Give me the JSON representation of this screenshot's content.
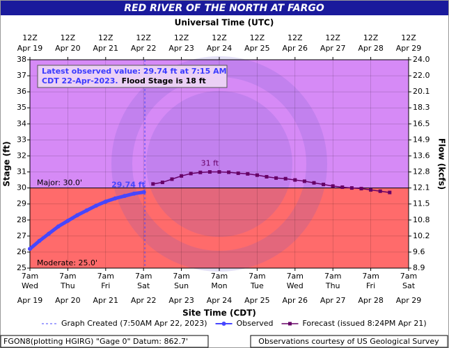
{
  "chart_data": {
    "type": "line",
    "title": "RED RIVER OF THE NORTH AT FARGO",
    "top_axis_title": "Universal Time (UTC)",
    "x_axis_title": "Site Time (CDT)",
    "y_axis_title": "Stage (ft)",
    "y2_axis_title": "Flow (kcfs)",
    "xlim": [
      "2023-04-19 07:00",
      "2023-04-29 07:00"
    ],
    "xticks": [
      "2023-04-19 07:00",
      "2023-04-20 07:00",
      "2023-04-21 07:00",
      "2023-04-22 07:00",
      "2023-04-23 07:00",
      "2023-04-24 07:00",
      "2023-04-25 07:00",
      "2023-04-26 07:00",
      "2023-04-27 07:00",
      "2023-04-28 07:00",
      "2023-04-29 07:00"
    ],
    "xtick_hours": [
      "7am",
      "7am",
      "7am",
      "7am",
      "7am",
      "7am",
      "7am",
      "7am",
      "7am",
      "7am",
      "7am"
    ],
    "xtick_weekdays": [
      "Wed",
      "Thu",
      "Fri",
      "Sat",
      "Sun",
      "Mon",
      "Tue",
      "Wed",
      "Thu",
      "Fri",
      "Sat"
    ],
    "xtick_dates": [
      "Apr 19",
      "Apr 20",
      "Apr 21",
      "Apr 22",
      "Apr 23",
      "Apr 24",
      "Apr 25",
      "Apr 26",
      "Apr 27",
      "Apr 28",
      "Apr 29"
    ],
    "top_xtick_hours": [
      "12Z",
      "12Z",
      "12Z",
      "12Z",
      "12Z",
      "12Z",
      "12Z",
      "12Z",
      "12Z",
      "12Z",
      "12Z"
    ],
    "top_xtick_dates": [
      "Apr 19",
      "Apr 20",
      "Apr 21",
      "Apr 22",
      "Apr 23",
      "Apr 24",
      "Apr 25",
      "Apr 26",
      "Apr 27",
      "Apr 28",
      "Apr 29"
    ],
    "ylim": [
      25,
      38
    ],
    "yticks": [
      25,
      26,
      27,
      28,
      29,
      30,
      31,
      32,
      33,
      34,
      35,
      36,
      37,
      38
    ],
    "y2ticks": [
      8.9,
      9.6,
      10.2,
      10.8,
      11.5,
      12.1,
      12.8,
      13.6,
      14.9,
      16.5,
      18.3,
      20.1,
      {
        "value": 22,
        "label": "22.0"
      },
      {
        "value": 24,
        "label": "24.0"
      }
    ],
    "grid": true,
    "flood_categories": [
      {
        "label": "Moderate: 25.0'",
        "stage": 25,
        "color": "#ff6b6b"
      },
      {
        "label": "Major: 30.0'",
        "stage": 30,
        "color": "#d68af6"
      }
    ],
    "info_box": {
      "observed_text": "Latest observed value: 29.74 ft at 7:15 AM CDT 22-Apr-2023.",
      "flood_stage_text": "Flood Stage is 18 ft"
    },
    "observed_label": "29.74 ft",
    "peak_label": "31 ft",
    "graph_created": {
      "x": "2023-04-22 07:50",
      "label": "Graph Created (7:50AM Apr 22, 2023)"
    },
    "series": [
      {
        "name": "Observed",
        "color": "#4646ff",
        "x": [
          "2023-04-19 07:00",
          "2023-04-19 13:00",
          "2023-04-19 19:00",
          "2023-04-20 01:00",
          "2023-04-20 07:00",
          "2023-04-20 13:00",
          "2023-04-20 19:00",
          "2023-04-21 01:00",
          "2023-04-21 07:00",
          "2023-04-21 13:00",
          "2023-04-21 19:00",
          "2023-04-22 01:00",
          "2023-04-22 07:15"
        ],
        "values": [
          26.2,
          26.7,
          27.15,
          27.6,
          27.95,
          28.3,
          28.6,
          28.9,
          29.15,
          29.35,
          29.5,
          29.65,
          29.74
        ]
      },
      {
        "name": "Forecast (issued 8:24PM Apr 21)",
        "color": "#660066",
        "x": [
          "2023-04-22 13:00",
          "2023-04-22 19:00",
          "2023-04-23 01:00",
          "2023-04-23 07:00",
          "2023-04-23 13:00",
          "2023-04-23 19:00",
          "2023-04-24 01:00",
          "2023-04-24 07:00",
          "2023-04-24 13:00",
          "2023-04-24 19:00",
          "2023-04-25 01:00",
          "2023-04-25 07:00",
          "2023-04-25 13:00",
          "2023-04-25 19:00",
          "2023-04-26 01:00",
          "2023-04-26 07:00",
          "2023-04-26 13:00",
          "2023-04-26 19:00",
          "2023-04-27 01:00",
          "2023-04-27 07:00",
          "2023-04-27 13:00",
          "2023-04-27 19:00",
          "2023-04-28 01:00",
          "2023-04-28 07:00",
          "2023-04-28 13:00",
          "2023-04-28 19:00"
        ],
        "values": [
          30.25,
          30.35,
          30.55,
          30.75,
          30.9,
          30.97,
          31.0,
          31.0,
          30.98,
          30.92,
          30.88,
          30.8,
          30.7,
          30.62,
          30.58,
          30.5,
          30.42,
          30.32,
          30.22,
          30.12,
          30.05,
          30.0,
          29.96,
          29.88,
          29.8,
          29.72
        ]
      }
    ],
    "footer_left": "FGON8(plotting HGIRG) \"Gage 0\" Datum: 862.7'",
    "footer_right": "Observations courtesy of US Geological Survey"
  }
}
